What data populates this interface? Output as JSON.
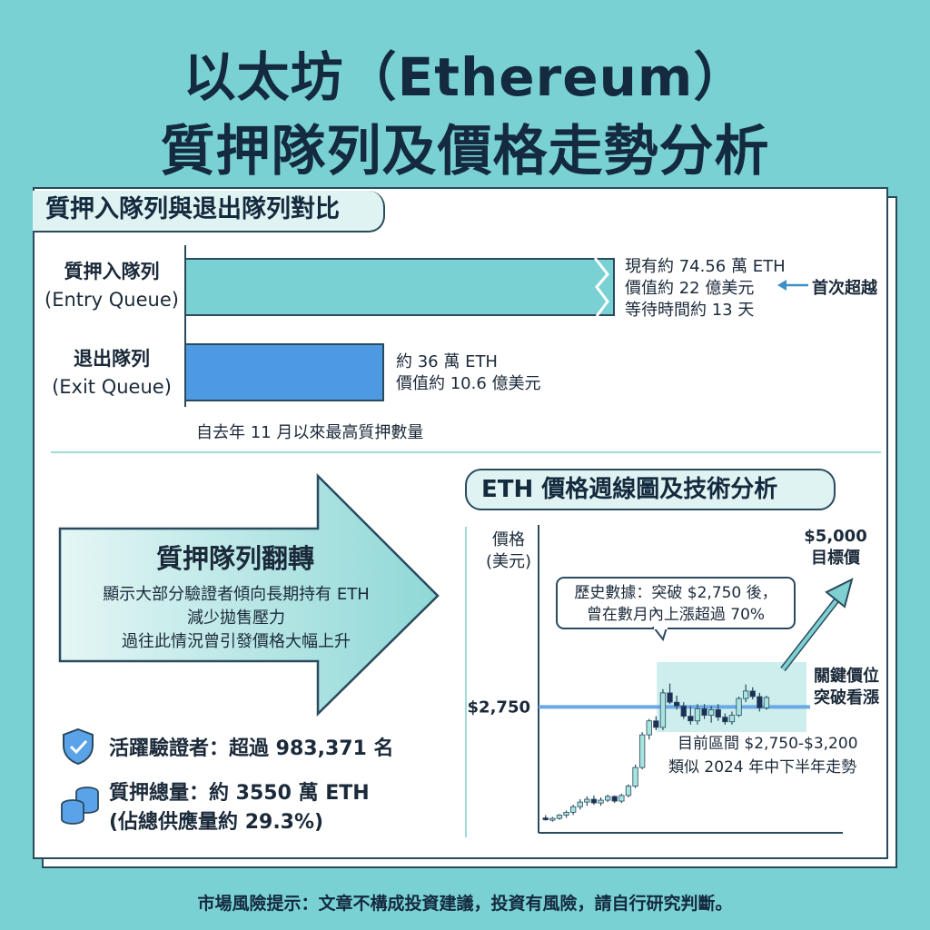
{
  "title": {
    "line1": "以太坊（Ethereum）",
    "line2": "質押隊列及價格走勢分析"
  },
  "queue_section": {
    "heading": "質押入隊列與退出隊列對比",
    "entry_label_zh": "質押入隊列",
    "entry_label_en": "(Entry Queue)",
    "exit_label_zh": "退出隊列",
    "exit_label_en": "(Exit Queue)",
    "entry_info": [
      "現有約 74.56 萬 ETH",
      "價值約 22 億美元",
      "等待時間約 13 天"
    ],
    "first_exceed_label": "首次超越",
    "exit_info": [
      "約 36 萬 ETH",
      "價值約 10.6 億美元"
    ],
    "footnote": "自去年 11 月以來最高質押數量"
  },
  "reversal": {
    "title": "質押隊列翻轉",
    "lines": [
      "顯示大部分驗證者傾向長期持有 ETH",
      "減少拋售壓力",
      "過往此情況曾引發價格大幅上升"
    ]
  },
  "stats": {
    "validators": "活躍驗證者：超過 983,371 名",
    "staked_line1": "質押總量：約 3550 萬 ETH",
    "staked_line2": "(佔總供應量約 29.3%)"
  },
  "chart_section": {
    "heading": "ETH 價格週線圖及技術分析",
    "ylabel_line1": "價格",
    "ylabel_line2": "(美元)",
    "key_level_label": "$2,750",
    "target_line1": "$5,000",
    "target_line2": "目標價",
    "callout_line1": "歷史數據：突破 $2,750 後，",
    "callout_line2": "曾在數月內上漲超過 70%",
    "key_text_line1": "關鍵價位",
    "key_text_line2": "突破看漲",
    "range_line1": "目前區間 $2,750-$3,200",
    "range_line2": "類似 2024 年中下半年走勢"
  },
  "footer": "市場風險提示：文章不構成投資建議，投資有風險，請自行研究判斷。",
  "colors": {
    "background": "#79d1d3",
    "entry_bar": "#79d1d3",
    "exit_bar": "#4e9ae2",
    "key_line": "#6aa9e6",
    "candle_up": "#a9e3e0",
    "candle_down": "#1b2f57",
    "range_box": "#cdeeed"
  },
  "chart_data": [
    {
      "type": "bar",
      "orientation": "horizontal",
      "categories": [
        "質押入隊列 (Entry Queue)",
        "退出隊列 (Exit Queue)"
      ],
      "values": [
        74.56,
        36
      ],
      "unit": "萬 ETH"
    },
    {
      "type": "candlestick",
      "title": "ETH 價格週線圖及技術分析",
      "ylabel": "價格 (美元)",
      "key_level": 2750,
      "target": 5000,
      "range": [
        2750,
        3200
      ],
      "candles": [
        {
          "o": 1560,
          "h": 1590,
          "l": 1530,
          "c": 1540
        },
        {
          "o": 1545,
          "h": 1570,
          "l": 1520,
          "c": 1555
        },
        {
          "o": 1555,
          "h": 1600,
          "l": 1540,
          "c": 1590
        },
        {
          "o": 1590,
          "h": 1640,
          "l": 1560,
          "c": 1620
        },
        {
          "o": 1620,
          "h": 1700,
          "l": 1590,
          "c": 1680
        },
        {
          "o": 1680,
          "h": 1760,
          "l": 1650,
          "c": 1730
        },
        {
          "o": 1730,
          "h": 1790,
          "l": 1690,
          "c": 1760
        },
        {
          "o": 1760,
          "h": 1800,
          "l": 1700,
          "c": 1720
        },
        {
          "o": 1720,
          "h": 1780,
          "l": 1690,
          "c": 1750
        },
        {
          "o": 1750,
          "h": 1810,
          "l": 1730,
          "c": 1790
        },
        {
          "o": 1790,
          "h": 1800,
          "l": 1720,
          "c": 1740
        },
        {
          "o": 1740,
          "h": 1820,
          "l": 1720,
          "c": 1800
        },
        {
          "o": 1800,
          "h": 1920,
          "l": 1780,
          "c": 1900
        },
        {
          "o": 1900,
          "h": 2130,
          "l": 1880,
          "c": 2100
        },
        {
          "o": 2100,
          "h": 2480,
          "l": 2080,
          "c": 2450
        },
        {
          "o": 2450,
          "h": 2620,
          "l": 2400,
          "c": 2600
        },
        {
          "o": 2600,
          "h": 2650,
          "l": 2500,
          "c": 2530
        },
        {
          "o": 2530,
          "h": 2940,
          "l": 2500,
          "c": 2900
        },
        {
          "o": 2900,
          "h": 3000,
          "l": 2780,
          "c": 2800
        },
        {
          "o": 2800,
          "h": 2870,
          "l": 2720,
          "c": 2760
        },
        {
          "o": 2760,
          "h": 2800,
          "l": 2620,
          "c": 2650
        },
        {
          "o": 2650,
          "h": 2760,
          "l": 2560,
          "c": 2600
        },
        {
          "o": 2600,
          "h": 2780,
          "l": 2560,
          "c": 2730
        },
        {
          "o": 2730,
          "h": 2780,
          "l": 2620,
          "c": 2660
        },
        {
          "o": 2660,
          "h": 2760,
          "l": 2580,
          "c": 2720
        },
        {
          "o": 2720,
          "h": 2780,
          "l": 2600,
          "c": 2640
        },
        {
          "o": 2640,
          "h": 2680,
          "l": 2560,
          "c": 2590
        },
        {
          "o": 2590,
          "h": 2700,
          "l": 2560,
          "c": 2660
        },
        {
          "o": 2660,
          "h": 2860,
          "l": 2640,
          "c": 2840
        },
        {
          "o": 2840,
          "h": 2990,
          "l": 2800,
          "c": 2920
        },
        {
          "o": 2920,
          "h": 2960,
          "l": 2830,
          "c": 2860
        },
        {
          "o": 2860,
          "h": 2900,
          "l": 2700,
          "c": 2740
        },
        {
          "o": 2740,
          "h": 2870,
          "l": 2720,
          "c": 2850
        }
      ]
    }
  ]
}
